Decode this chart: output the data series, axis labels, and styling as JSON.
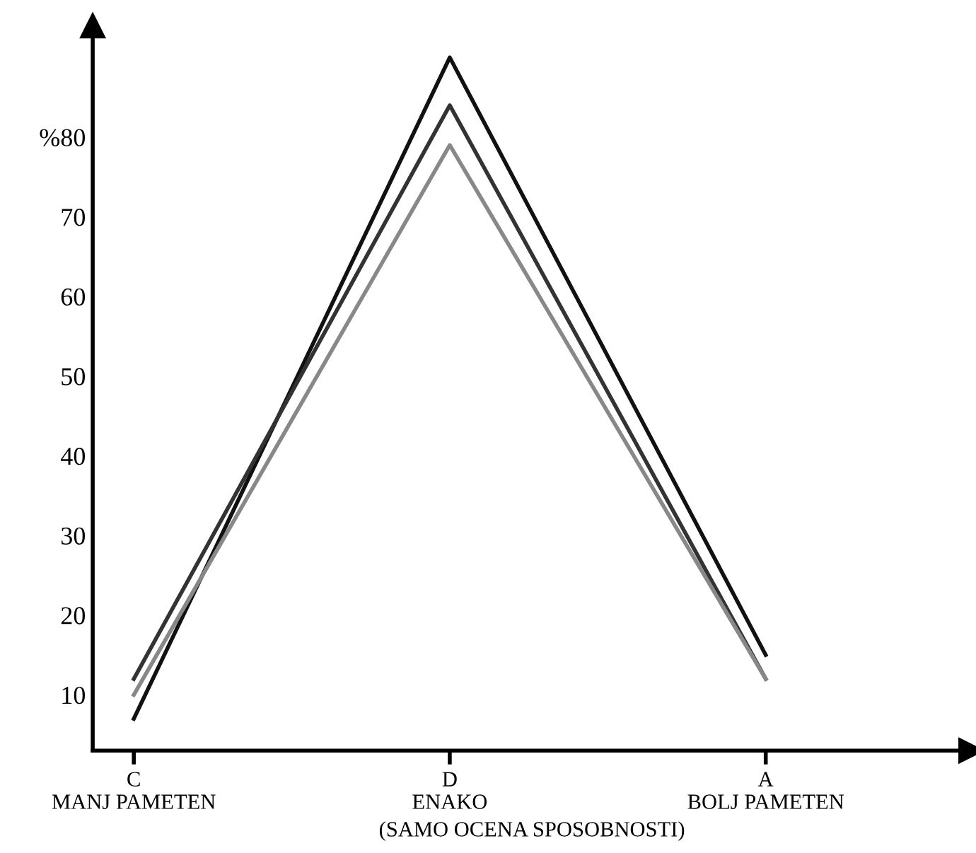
{
  "chart_data": {
    "type": "line",
    "xlabel": "(SAMO OCENA SPOSOBNOSTI)",
    "ylim": [
      3,
      94
    ],
    "categories": [
      "C\nMANJ PAMETEN",
      "D\nENAKO",
      "A\nBOLJ PAMETEN"
    ],
    "yticks": [
      10,
      20,
      30,
      40,
      50,
      60,
      70,
      {
        "value": 80,
        "label": "%80"
      }
    ],
    "series": [
      {
        "color": "#111111",
        "values": [
          7,
          90,
          15
        ]
      },
      {
        "color": "#333333",
        "values": [
          12,
          84,
          12
        ]
      },
      {
        "color": "#888888",
        "values": [
          10,
          79,
          12
        ]
      }
    ],
    "grid": false,
    "marker": "none",
    "line_style": "solid"
  }
}
